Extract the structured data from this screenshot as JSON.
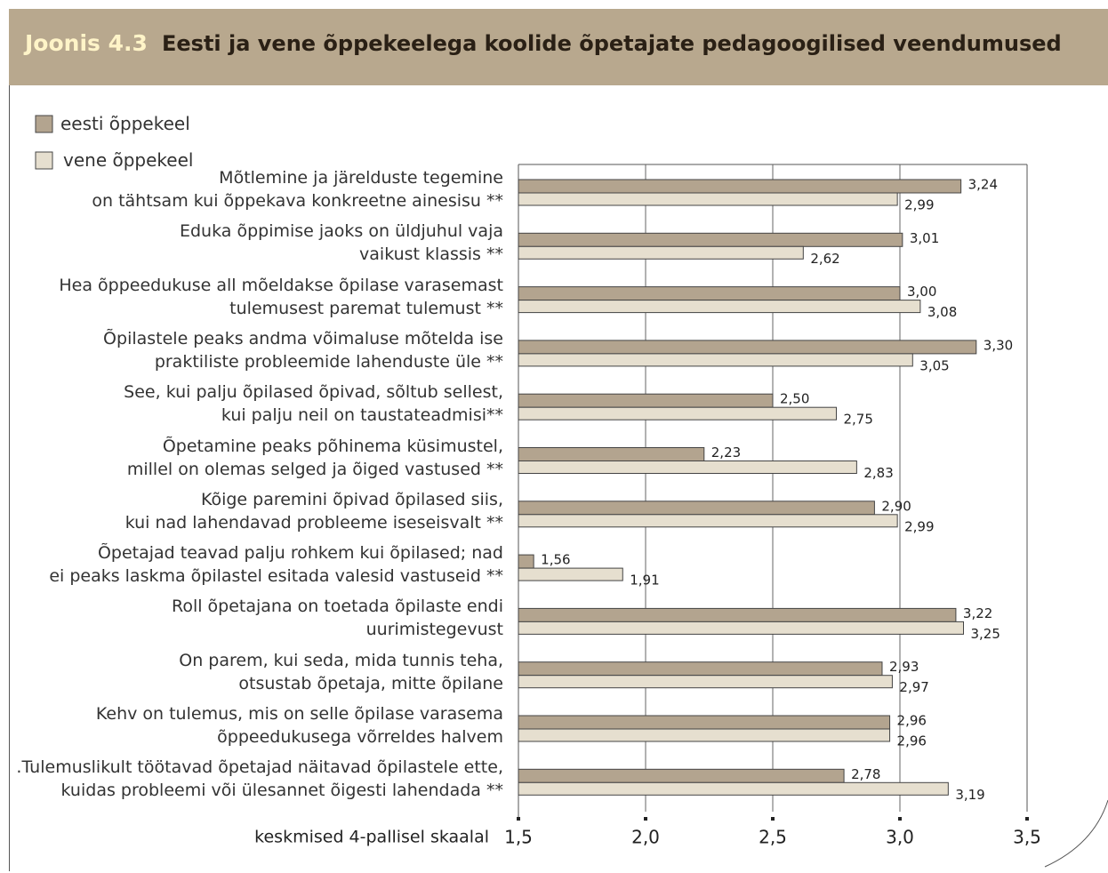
{
  "chart_data": {
    "type": "bar",
    "orientation": "horizontal",
    "title_prefix": "Joonis 4.3",
    "title": "Eesti ja vene õppekeelega koolide õpetajate pedagoogilised veendumused",
    "xlabel": "keskmised 4-pallisel skaalal",
    "categories": [
      "Mõtlemine ja järelduste tegemine\non tähtsam kui õppekava konkreetne ainesisu **",
      "Eduka õppimise jaoks on üldjuhul vaja\nvaikust klassis **",
      "Hea õppeedukuse all mõeldakse õpilase varasemast\ntulemusest paremat tulemust **",
      "Õpilastele peaks andma võimaluse mõtelda ise\npraktiliste probleemide lahenduste üle **",
      "See, kui palju õpilased õpivad, sõltub sellest,\nkui palju neil on taustateadmisi**",
      "Õpetamine peaks põhinema küsimustel,\nmillel on olemas selged ja õiged vastused **",
      "Kõige paremini õpivad õpilased siis,\nkui nad lahendavad probleeme iseseisvalt **",
      "Õpetajad teavad palju rohkem kui õpilased; nad\nei peaks laskma õpilastel esitada valesid vastuseid **",
      "Roll õpetajana on toetada õpilaste endi\nuurimistegevust",
      "On parem, kui seda, mida tunnis teha,\notsustab õpetaja, mitte õpilane",
      "Kehv on tulemus, mis on selle õpilase varasema\nõppeedukusega võrreldes halvem",
      ".Tulemuslikult töötavad õpetajad näitavad õpilastele ette,\nkuidas probleemi või ülesannet õigesti lahendada **"
    ],
    "series": [
      {
        "name": "eesti õppekeel",
        "color": "#b3a48f",
        "values": [
          3.24,
          3.01,
          3.0,
          3.3,
          2.5,
          2.23,
          2.9,
          1.56,
          3.22,
          2.93,
          2.96,
          2.78
        ],
        "value_labels": [
          "3,24",
          "3,01",
          "3,00",
          "3,30",
          "2,50",
          "2,23",
          "2,90",
          "1,56",
          "3,22",
          "2,93",
          "2,96",
          "2,78"
        ]
      },
      {
        "name": "vene õppekeel",
        "color": "#e6dfcf",
        "values": [
          2.99,
          2.62,
          3.08,
          3.05,
          2.75,
          2.83,
          2.99,
          1.91,
          3.25,
          2.97,
          2.96,
          3.19
        ],
        "value_labels": [
          "2,99",
          "2,62",
          "3,08",
          "3,05",
          "2,75",
          "2,83",
          "2,99",
          "1,91",
          "3,25",
          "2,97",
          "2,96",
          "3,19"
        ]
      }
    ],
    "xlim": [
      1.5,
      3.5
    ],
    "xticks": [
      {
        "value": 1.5,
        "label": "1,5"
      },
      {
        "value": 2.0,
        "label": "2,0"
      },
      {
        "value": 2.5,
        "label": "2,5"
      },
      {
        "value": 3.0,
        "label": "3,0"
      },
      {
        "value": 3.5,
        "label": "3,5"
      }
    ],
    "grid": true
  }
}
